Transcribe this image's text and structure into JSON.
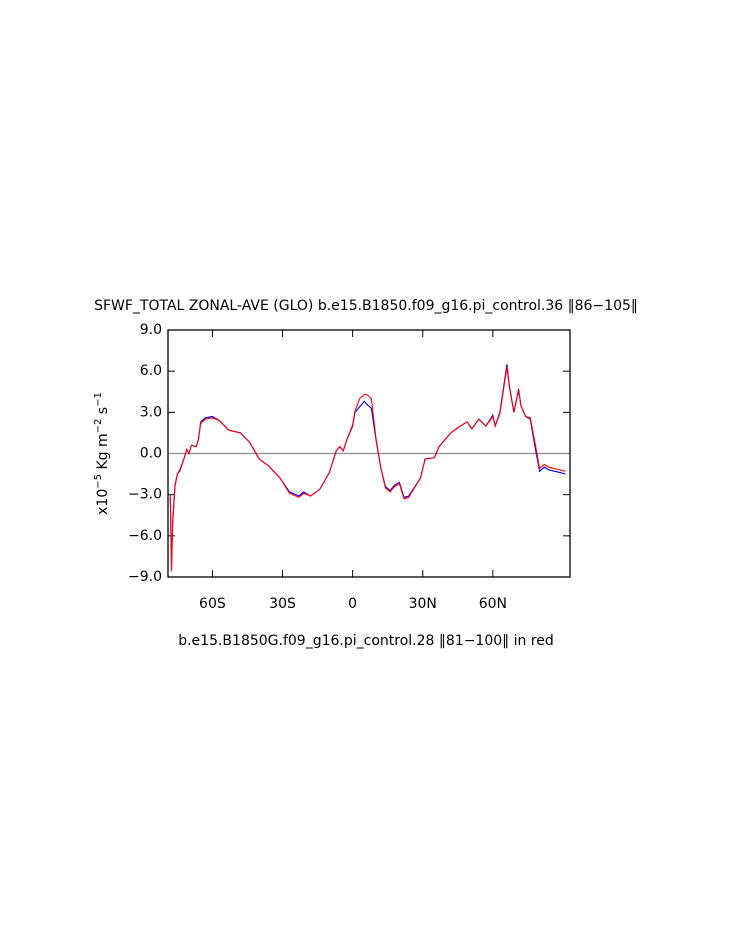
{
  "chart_data": {
    "type": "line",
    "title": "SFWF_TOTAL ZONAL-AVE (GLO) b.e15.B1850.f09_g16.pi_control.36 ‖86−105‖",
    "subtitle": "b.e15.B1850G.f09_g16.pi_control.28 ‖81−100‖ in red",
    "ylabel_parts": [
      "x10",
      "−5",
      " Kg m",
      "−2",
      " s",
      "−1"
    ],
    "xlim": [
      -79,
      93
    ],
    "ylim": [
      -9,
      9
    ],
    "xticks": [
      {
        "value": -60,
        "label": "60S"
      },
      {
        "value": -30,
        "label": "30S"
      },
      0,
      {
        "value": 30,
        "label": "30N"
      },
      {
        "value": 60,
        "label": "60N"
      }
    ],
    "yticks": [
      {
        "value": -9,
        "label": "−9.0"
      },
      {
        "value": -6,
        "label": "−6.0"
      },
      {
        "value": -3,
        "label": "−3.0"
      },
      {
        "value": 0,
        "label": "0.0"
      },
      {
        "value": 3,
        "label": "3.0"
      },
      {
        "value": 6,
        "label": "6.0"
      },
      {
        "value": 9,
        "label": "9.0"
      }
    ],
    "reference_line": 0,
    "x": [
      -78,
      -77.5,
      -77,
      -76,
      -75,
      -74,
      -72,
      -71,
      -70,
      -69,
      -67,
      -66,
      -65,
      -63,
      -60,
      -57,
      -53,
      -48,
      -44,
      -40,
      -36,
      -31,
      -27,
      -23,
      -21,
      -18,
      -14,
      -10,
      -7,
      -5.5,
      -4,
      -2.5,
      0,
      1,
      3,
      5,
      6,
      8,
      10,
      12,
      14,
      16,
      18,
      20,
      22,
      24,
      29,
      31,
      35,
      37,
      42,
      46,
      49,
      51,
      54,
      57,
      60,
      61,
      63,
      66,
      67,
      69,
      71,
      72,
      74,
      76,
      78,
      80,
      82,
      84,
      89,
      91
    ],
    "series": [
      {
        "color": "#0000ff",
        "values": [
          -3.2,
          -8.3,
          -5.0,
          -2.3,
          -1.5,
          -1.3,
          -0.3,
          0.3,
          0.0,
          0.6,
          0.5,
          1.0,
          2.3,
          2.6,
          2.7,
          2.4,
          1.7,
          1.5,
          0.8,
          -0.4,
          -0.9,
          -1.8,
          -2.8,
          -3.1,
          -2.8,
          -3.1,
          -2.6,
          -1.4,
          0.2,
          0.5,
          0.2,
          1.0,
          2.0,
          3.0,
          3.4,
          3.8,
          3.6,
          3.3,
          1.0,
          -1.0,
          -2.4,
          -2.7,
          -2.3,
          -2.1,
          -3.2,
          -3.1,
          -1.8,
          -0.4,
          -0.3,
          0.5,
          1.5,
          2.0,
          2.3,
          1.8,
          2.5,
          2.0,
          2.8,
          2.0,
          3.0,
          6.5,
          5.0,
          3.0,
          4.7,
          3.5,
          2.7,
          2.5,
          0.5,
          -1.3,
          -1.0,
          -1.2,
          -1.4,
          -1.5
        ]
      },
      {
        "color": "#ff0000",
        "values": [
          -3.0,
          -8.6,
          -5.2,
          -2.4,
          -1.5,
          -1.2,
          -0.3,
          0.3,
          0.0,
          0.6,
          0.5,
          1.0,
          2.2,
          2.5,
          2.6,
          2.4,
          1.7,
          1.5,
          0.8,
          -0.4,
          -0.9,
          -1.8,
          -2.9,
          -3.2,
          -2.9,
          -3.1,
          -2.6,
          -1.4,
          0.2,
          0.5,
          0.2,
          1.0,
          2.1,
          3.1,
          4.0,
          4.3,
          4.3,
          4.0,
          1.1,
          -1.0,
          -2.5,
          -2.8,
          -2.4,
          -2.2,
          -3.3,
          -3.2,
          -1.8,
          -0.4,
          -0.3,
          0.5,
          1.5,
          2.0,
          2.3,
          1.8,
          2.5,
          2.0,
          2.7,
          2.0,
          2.9,
          6.3,
          4.9,
          3.0,
          4.6,
          3.5,
          2.7,
          2.6,
          0.8,
          -1.1,
          -0.8,
          -1.0,
          -1.2,
          -1.3
        ]
      }
    ]
  }
}
